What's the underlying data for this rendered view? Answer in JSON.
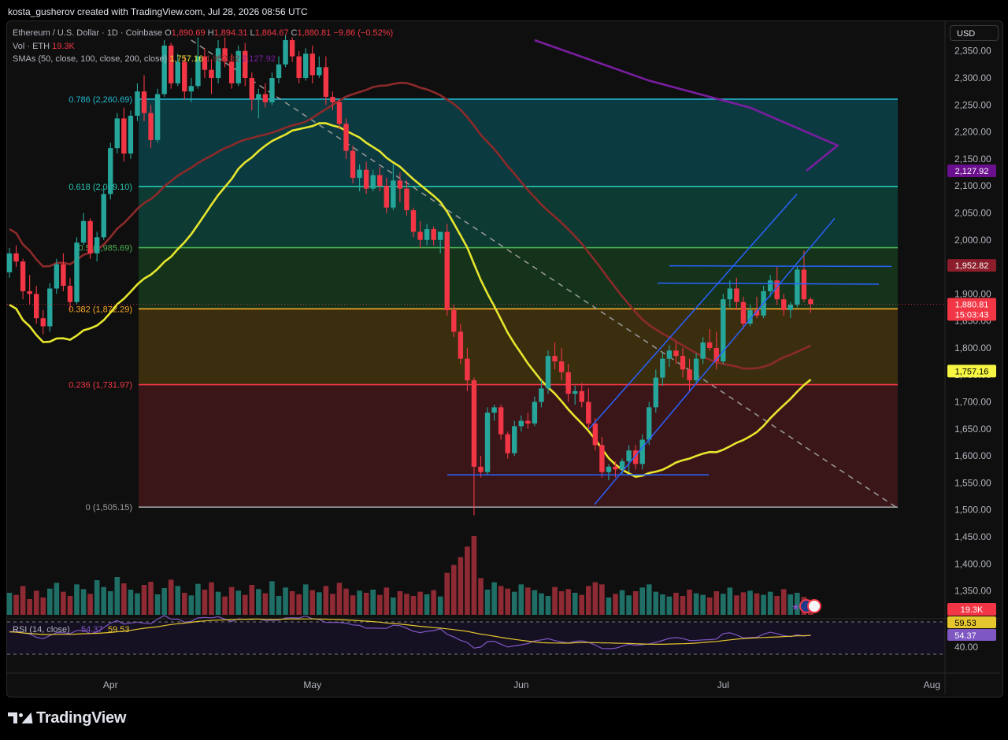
{
  "header": {
    "creator_line": "kosta_gusherov created with TradingView.com, Jul 28, 2026 08:56 UTC"
  },
  "legend": {
    "symbol": "Ethereum / U.S. Dollar · 1D · Coinbase",
    "o_label": "O",
    "o_value": "1,890.69",
    "h_label": "H",
    "h_value": "1,894.31",
    "l_label": "L",
    "l_value": "1,864.67",
    "c_label": "C",
    "c_value": "1,880.81",
    "change": "−9.86 (−0.52%)",
    "vol_label": "Vol · ETH",
    "vol_value": "19.3K",
    "sma_label": "SMAs (50, close, 100, close, 200, close)",
    "sma50": "1,757.16",
    "sma100": "1,952.82",
    "sma200": "2,127.92"
  },
  "currency": "USD",
  "colors": {
    "up": "#26a69a",
    "down": "#f23645",
    "sma50": "#e6e62e",
    "sma100": "#8c2a2a",
    "sma200": "#7a1ea0",
    "trend": "#2962ff"
  },
  "chart_data": {
    "type": "candlestick",
    "ylim": [
      1310,
      2370
    ],
    "y_ticks": [
      "2,350.00",
      "2,300.00",
      "2,250.00",
      "2,200.00",
      "2,150.00",
      "2,100.00",
      "2,050.00",
      "2,000.00",
      "1,900.00",
      "1,850.00",
      "1,800.00",
      "1,750.00",
      "1,700.00",
      "1,650.00",
      "1,600.00",
      "1,550.00",
      "1,500.00",
      "1,450.00",
      "1,400.00",
      "1,350.00"
    ],
    "y_tick_values": [
      2350,
      2300,
      2250,
      2200,
      2150,
      2100,
      2050,
      2000,
      1900,
      1850,
      1800,
      1750,
      1700,
      1650,
      1600,
      1550,
      1500,
      1450,
      1400,
      1350
    ],
    "x_ticks": [
      {
        "label": "Apr",
        "day": 15
      },
      {
        "label": "May",
        "day": 45
      },
      {
        "label": "Jun",
        "day": 76
      },
      {
        "label": "Jul",
        "day": 106
      },
      {
        "label": "Aug",
        "day": 137
      }
    ],
    "ohlc": [
      [
        1940,
        1985,
        1930,
        1975
      ],
      [
        1975,
        1990,
        1950,
        1960
      ],
      [
        1960,
        1965,
        1890,
        1905
      ],
      [
        1905,
        1935,
        1880,
        1900
      ],
      [
        1900,
        1915,
        1845,
        1855
      ],
      [
        1855,
        1870,
        1825,
        1840
      ],
      [
        1840,
        1920,
        1830,
        1910
      ],
      [
        1910,
        1965,
        1900,
        1955
      ],
      [
        1955,
        1975,
        1905,
        1915
      ],
      [
        1915,
        1930,
        1870,
        1885
      ],
      [
        1885,
        2005,
        1880,
        1995
      ],
      [
        1995,
        2050,
        1990,
        2035
      ],
      [
        2035,
        2040,
        1965,
        1975
      ],
      [
        1975,
        2015,
        1960,
        2005
      ],
      [
        2005,
        2095,
        2000,
        2085
      ],
      [
        2085,
        2180,
        2075,
        2170
      ],
      [
        2170,
        2235,
        2160,
        2225
      ],
      [
        2225,
        2245,
        2145,
        2160
      ],
      [
        2160,
        2240,
        2150,
        2230
      ],
      [
        2230,
        2290,
        2220,
        2275
      ],
      [
        2275,
        2305,
        2220,
        2235
      ],
      [
        2235,
        2250,
        2170,
        2185
      ],
      [
        2185,
        2280,
        2180,
        2270
      ],
      [
        2270,
        2370,
        2265,
        2360
      ],
      [
        2360,
        2365,
        2280,
        2290
      ],
      [
        2290,
        2345,
        2285,
        2330
      ],
      [
        2330,
        2340,
        2260,
        2275
      ],
      [
        2275,
        2300,
        2255,
        2285
      ],
      [
        2285,
        2375,
        2280,
        2340
      ],
      [
        2340,
        2355,
        2300,
        2315
      ],
      [
        2315,
        2335,
        2270,
        2300
      ],
      [
        2300,
        2370,
        2290,
        2355
      ],
      [
        2355,
        2375,
        2320,
        2330
      ],
      [
        2330,
        2345,
        2280,
        2290
      ],
      [
        2290,
        2360,
        2285,
        2350
      ],
      [
        2350,
        2365,
        2285,
        2300
      ],
      [
        2300,
        2310,
        2240,
        2260
      ],
      [
        2260,
        2280,
        2225,
        2270
      ],
      [
        2270,
        2290,
        2245,
        2255
      ],
      [
        2255,
        2310,
        2250,
        2300
      ],
      [
        2300,
        2340,
        2290,
        2325
      ],
      [
        2325,
        2380,
        2320,
        2370
      ],
      [
        2370,
        2375,
        2330,
        2340
      ],
      [
        2340,
        2350,
        2290,
        2300
      ],
      [
        2300,
        2355,
        2295,
        2345
      ],
      [
        2345,
        2360,
        2290,
        2305
      ],
      [
        2305,
        2340,
        2300,
        2320
      ],
      [
        2320,
        2340,
        2250,
        2265
      ],
      [
        2265,
        2275,
        2240,
        2255
      ],
      [
        2255,
        2260,
        2205,
        2215
      ],
      [
        2215,
        2225,
        2150,
        2165
      ],
      [
        2165,
        2175,
        2105,
        2115
      ],
      [
        2115,
        2140,
        2090,
        2130
      ],
      [
        2130,
        2145,
        2085,
        2095
      ],
      [
        2095,
        2130,
        2090,
        2120
      ],
      [
        2120,
        2135,
        2090,
        2100
      ],
      [
        2100,
        2115,
        2050,
        2060
      ],
      [
        2060,
        2140,
        2055,
        2110
      ],
      [
        2110,
        2125,
        2070,
        2095
      ],
      [
        2095,
        2110,
        2045,
        2055
      ],
      [
        2055,
        2060,
        2005,
        2015
      ],
      [
        2015,
        2035,
        1985,
        2000
      ],
      [
        2000,
        2030,
        1990,
        2020
      ],
      [
        2020,
        2025,
        1990,
        2000
      ],
      [
        2000,
        2005,
        1975,
        2015
      ],
      [
        2015,
        2030,
        1860,
        1870
      ],
      [
        1870,
        1880,
        1820,
        1830
      ],
      [
        1830,
        1845,
        1770,
        1780
      ],
      [
        1780,
        1800,
        1720,
        1740
      ],
      [
        1740,
        1745,
        1490,
        1580
      ],
      [
        1580,
        1600,
        1560,
        1570
      ],
      [
        1570,
        1690,
        1565,
        1680
      ],
      [
        1680,
        1695,
        1665,
        1690
      ],
      [
        1690,
        1695,
        1630,
        1640
      ],
      [
        1640,
        1645,
        1595,
        1605
      ],
      [
        1605,
        1665,
        1600,
        1655
      ],
      [
        1655,
        1675,
        1645,
        1665
      ],
      [
        1665,
        1680,
        1650,
        1660
      ],
      [
        1660,
        1710,
        1655,
        1700
      ],
      [
        1700,
        1740,
        1690,
        1725
      ],
      [
        1725,
        1795,
        1715,
        1785
      ],
      [
        1785,
        1810,
        1760,
        1775
      ],
      [
        1775,
        1800,
        1740,
        1755
      ],
      [
        1755,
        1770,
        1700,
        1715
      ],
      [
        1715,
        1730,
        1695,
        1720
      ],
      [
        1720,
        1735,
        1690,
        1700
      ],
      [
        1700,
        1725,
        1650,
        1660
      ],
      [
        1660,
        1670,
        1610,
        1620
      ],
      [
        1620,
        1635,
        1560,
        1570
      ],
      [
        1570,
        1585,
        1555,
        1580
      ],
      [
        1580,
        1590,
        1560,
        1575
      ],
      [
        1575,
        1595,
        1565,
        1590
      ],
      [
        1590,
        1620,
        1570,
        1610
      ],
      [
        1610,
        1620,
        1575,
        1585
      ],
      [
        1585,
        1640,
        1575,
        1630
      ],
      [
        1630,
        1700,
        1620,
        1690
      ],
      [
        1690,
        1760,
        1680,
        1745
      ],
      [
        1745,
        1790,
        1730,
        1780
      ],
      [
        1780,
        1805,
        1765,
        1795
      ],
      [
        1795,
        1810,
        1770,
        1785
      ],
      [
        1785,
        1800,
        1745,
        1760
      ],
      [
        1760,
        1780,
        1720,
        1740
      ],
      [
        1740,
        1790,
        1735,
        1780
      ],
      [
        1780,
        1820,
        1770,
        1810
      ],
      [
        1810,
        1835,
        1795,
        1800
      ],
      [
        1800,
        1830,
        1760,
        1775
      ],
      [
        1775,
        1900,
        1770,
        1890
      ],
      [
        1890,
        1925,
        1875,
        1910
      ],
      [
        1910,
        1930,
        1870,
        1885
      ],
      [
        1885,
        1895,
        1835,
        1845
      ],
      [
        1845,
        1880,
        1840,
        1870
      ],
      [
        1870,
        1895,
        1855,
        1860
      ],
      [
        1860,
        1915,
        1855,
        1905
      ],
      [
        1905,
        1935,
        1895,
        1925
      ],
      [
        1925,
        1950,
        1880,
        1890
      ],
      [
        1890,
        1900,
        1860,
        1870
      ],
      [
        1870,
        1885,
        1855,
        1880
      ],
      [
        1880,
        1950,
        1875,
        1945
      ],
      [
        1945,
        1980,
        1885,
        1890
      ],
      [
        1890,
        1894,
        1865,
        1881
      ]
    ],
    "volume": [
      42,
      38,
      55,
      30,
      46,
      33,
      50,
      61,
      44,
      36,
      58,
      49,
      40,
      66,
      53,
      45,
      72,
      60,
      48,
      41,
      57,
      63,
      39,
      51,
      67,
      55,
      42,
      37,
      59,
      48,
      62,
      44,
      35,
      53,
      46,
      38,
      57,
      49,
      41,
      64,
      36,
      52,
      45,
      39,
      58,
      47,
      43,
      55,
      40,
      61,
      50,
      37,
      46,
      42,
      48,
      38,
      52,
      33,
      45,
      40,
      36,
      44,
      39,
      47,
      35,
      80,
      95,
      110,
      130,
      150,
      70,
      48,
      62,
      55,
      50,
      44,
      58,
      52,
      47,
      41,
      36,
      53,
      45,
      49,
      42,
      38,
      55,
      62,
      58,
      33,
      40,
      47,
      37,
      45,
      52,
      58,
      44,
      39,
      35,
      42,
      36,
      48,
      41,
      38,
      33,
      45,
      40,
      52,
      37,
      43,
      46,
      41,
      38,
      44,
      36,
      49,
      39,
      42,
      34,
      28
    ],
    "fib_levels": [
      {
        "label": "0.786 (2,260.69)",
        "price": 2260.69,
        "color": "#22b8cf"
      },
      {
        "label": "0.618 (2,099.10)",
        "price": 2099.1,
        "color": "#26c6b0"
      },
      {
        "label": "0.5 (1,985.69)",
        "price": 1985.69,
        "color": "#4caf50"
      },
      {
        "label": "0.382 (1,872.29)",
        "price": 1872.29,
        "color": "#f9a825"
      },
      {
        "label": "0.236 (1,731.97)",
        "price": 1731.97,
        "color": "#f23645"
      },
      {
        "label": "0 (1,505.15)",
        "price": 1505.15,
        "color": "#9e9e9e"
      }
    ],
    "price_tags": [
      {
        "text": "1,952.82",
        "price": 1952.82,
        "bg": "#8c1d2a",
        "fg": "#ffffff"
      },
      {
        "text": "2,127.92",
        "price": 2127.92,
        "bg": "#6a0f8e",
        "fg": "#ffffff"
      },
      {
        "text": "1,880.81",
        "price": 1880.81,
        "bg": "#f23645",
        "fg": "#ffffff"
      },
      {
        "text": "15:03:43",
        "price": 1862,
        "bg": "#f23645",
        "fg": "#ffffff"
      },
      {
        "text": "1,757.16",
        "price": 1757.16,
        "bg": "#f5f542",
        "fg": "#000000"
      }
    ],
    "rsi": {
      "label": "RSI (14, close)",
      "value": "54.37",
      "ma": "59.53",
      "tick": "40.00"
    },
    "volume_tag": "19.3K"
  },
  "brand": "TradingView"
}
